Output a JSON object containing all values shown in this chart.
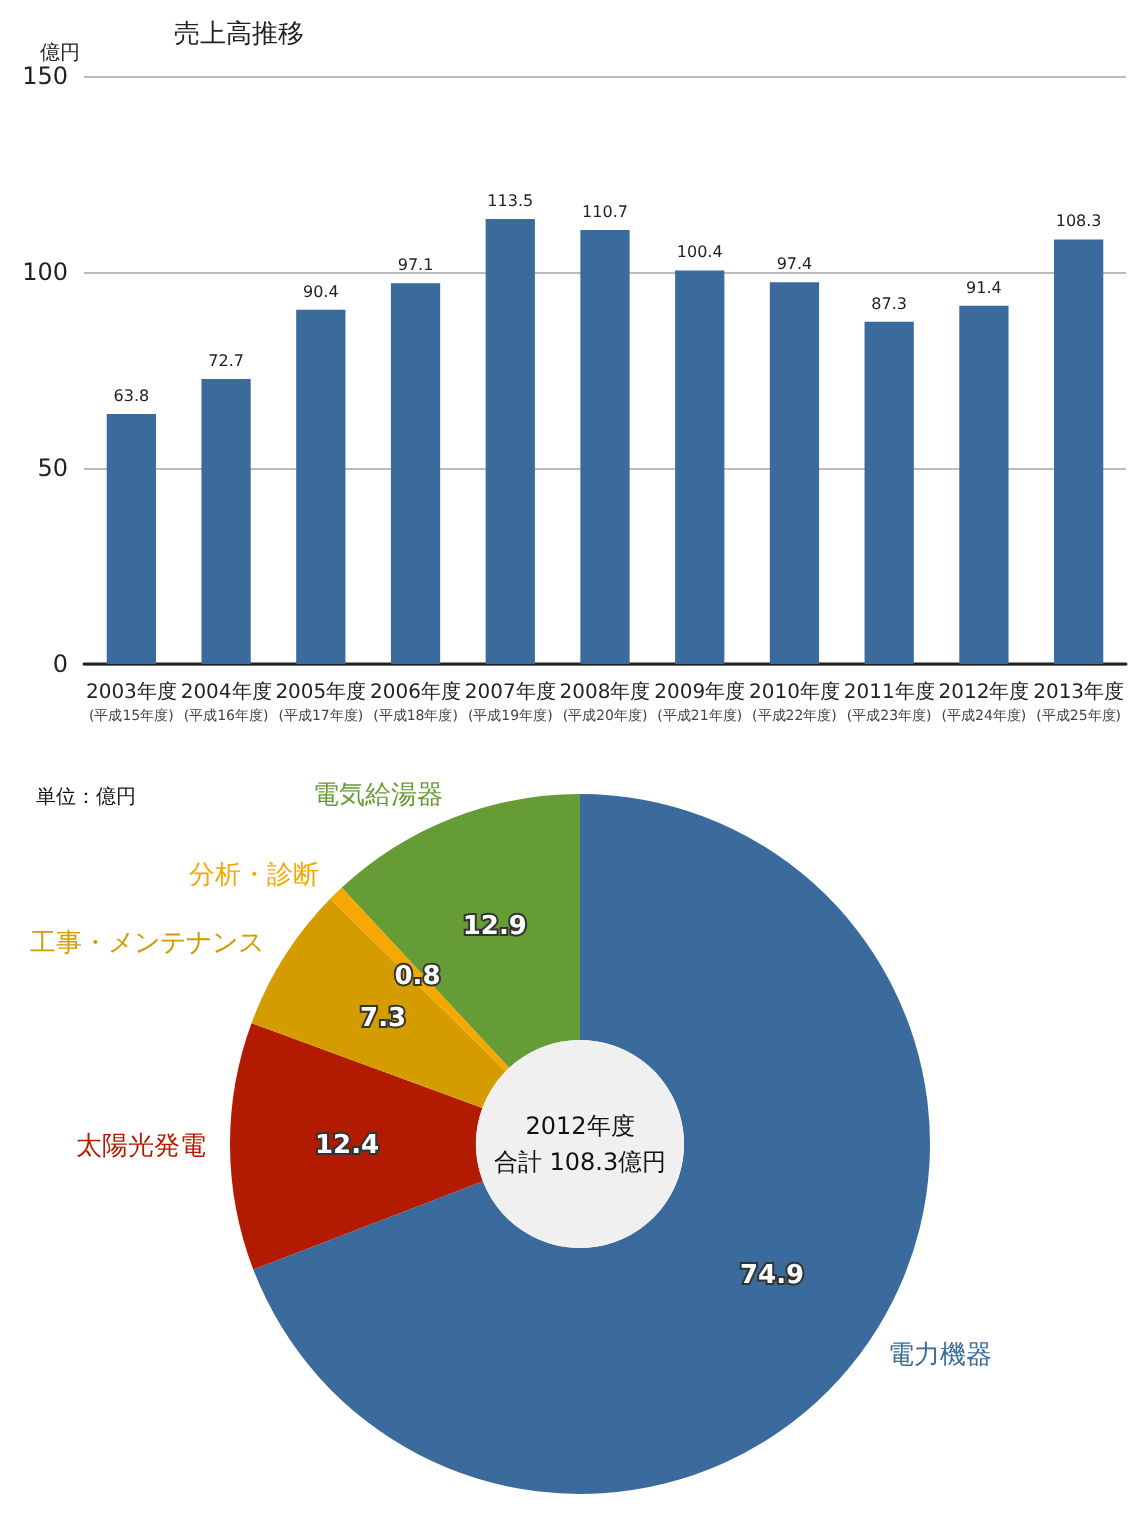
{
  "chart_data": [
    {
      "type": "bar",
      "title": "売上高推移",
      "ylabel": "億円",
      "categories": [
        "2003年度\n(平成15年度)",
        "2004年度\n(平成16年度)",
        "2005年度\n(平成17年度)",
        "2006年度\n(平成18年度)",
        "2007年度\n(平成19年度)",
        "2008年度\n(平成20年度)",
        "2009年度\n(平成21年度)",
        "2010年度\n(平成22年度)",
        "2011年度\n(平成23年度)",
        "2012年度\n(平成24年度)",
        "2013年度\n(平成25年度)"
      ],
      "values": [
        63.8,
        72.7,
        90.4,
        97.1,
        113.5,
        110.7,
        100.4,
        97.4,
        87.3,
        91.4,
        108.3
      ],
      "color": "#3b6a9c",
      "ylim": [
        0,
        150
      ],
      "yticks": [
        0,
        50,
        100,
        150
      ],
      "grid": "y",
      "data_labels": true
    },
    {
      "type": "donut",
      "categories": [
        "電力機器",
        "太陽光発電",
        "工事・メンテナンス",
        "分析・診断",
        "電気給湯器"
      ],
      "values": [
        74.9,
        12.4,
        7.3,
        0.8,
        12.9
      ],
      "colors": [
        "#3b6a9c",
        "#b31b00",
        "#d49c00",
        "#f6a800",
        "#669c35"
      ],
      "data_labels": true,
      "annotations": [
        "単位：億円",
        "2012年度",
        "合計 108.3億円"
      ]
    }
  ]
}
